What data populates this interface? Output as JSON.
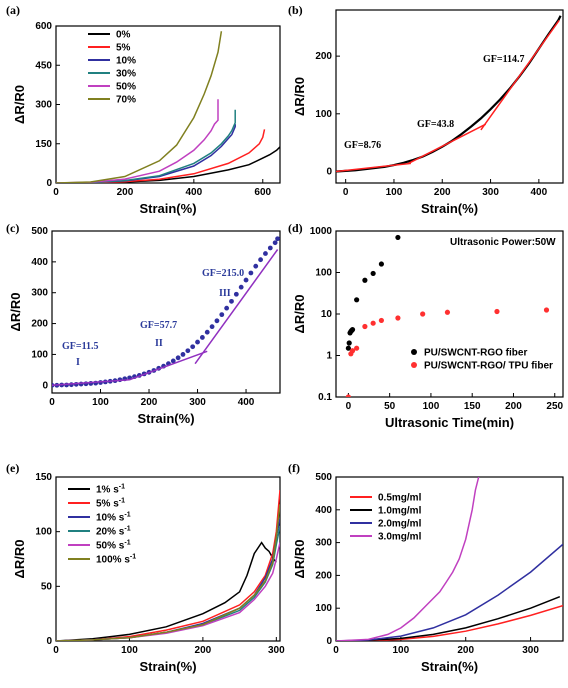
{
  "chart_data": [
    {
      "panel_label": "(a)",
      "type": "line",
      "xlabel": "Strain(%)",
      "ylabel": "ΔR/R0",
      "xlim": [
        0,
        650
      ],
      "ylim": [
        0,
        600
      ],
      "xticks": [
        "0",
        "200",
        "400",
        "600"
      ],
      "yticks": [
        "0",
        "150",
        "300",
        "450",
        "600"
      ],
      "legend_position": "top-left",
      "series": [
        {
          "name": "0%",
          "color": "#000000",
          "x": [
            0,
            100,
            200,
            300,
            400,
            500,
            560,
            600,
            620,
            640,
            650
          ],
          "y": [
            0,
            1,
            4,
            10,
            25,
            50,
            70,
            95,
            108,
            125,
            138
          ]
        },
        {
          "name": "5%",
          "color": "#ff2020",
          "x": [
            0,
            100,
            200,
            300,
            400,
            500,
            560,
            590,
            600,
            605
          ],
          "y": [
            0,
            1,
            5,
            14,
            35,
            75,
            115,
            150,
            175,
            205
          ]
        },
        {
          "name": "10%",
          "color": "#3030a0",
          "x": [
            0,
            100,
            200,
            300,
            400,
            450,
            480,
            500,
            510,
            515,
            520,
            520
          ],
          "y": [
            0,
            2,
            8,
            25,
            65,
            105,
            140,
            170,
            185,
            200,
            215,
            225
          ]
        },
        {
          "name": "30%",
          "color": "#208080",
          "x": [
            0,
            100,
            200,
            300,
            400,
            450,
            480,
            500,
            510,
            515,
            520,
            520
          ],
          "y": [
            0,
            2,
            9,
            28,
            75,
            115,
            150,
            180,
            200,
            215,
            230,
            280
          ]
        },
        {
          "name": "50%",
          "color": "#c040c0",
          "x": [
            0,
            100,
            200,
            300,
            350,
            400,
            430,
            450,
            460,
            470,
            470
          ],
          "y": [
            0,
            3,
            15,
            45,
            80,
            125,
            165,
            200,
            225,
            240,
            320
          ]
        },
        {
          "name": "70%",
          "color": "#808020",
          "x": [
            0,
            100,
            200,
            300,
            350,
            400,
            430,
            450,
            470,
            480
          ],
          "y": [
            0,
            4,
            25,
            85,
            145,
            250,
            340,
            410,
            500,
            580
          ]
        }
      ]
    },
    {
      "panel_label": "(b)",
      "type": "line",
      "xlabel": "Strain(%)",
      "ylabel": "ΔR/R0",
      "xlim": [
        0,
        470
      ],
      "ylim": [
        -20,
        280
      ],
      "xticks": [
        "0",
        "100",
        "200",
        "300",
        "400"
      ],
      "yticks": [
        "0",
        "100",
        "200"
      ],
      "annotations": [
        "GF=8.76",
        "GF=43.8",
        "GF=114.7"
      ],
      "series": [
        {
          "name": "",
          "color": "#000000",
          "x": [
            0,
            20,
            40,
            60,
            80,
            100,
            120,
            140,
            160,
            180,
            200,
            220,
            240,
            260,
            280,
            300,
            320,
            340,
            360,
            380,
            400,
            420,
            440,
            460,
            465
          ],
          "y": [
            0,
            1,
            2,
            4,
            6,
            8,
            11,
            15,
            20,
            26,
            34,
            43,
            53,
            65,
            78,
            92,
            108,
            125,
            144,
            165,
            188,
            213,
            238,
            262,
            270
          ]
        },
        {
          "name": "",
          "color": "#ff2020",
          "x": [
            0,
            155
          ],
          "y": [
            0,
            14
          ]
        },
        {
          "name": "",
          "color": "#ff2020",
          "x": [
            150,
            310
          ],
          "y": [
            14,
            82
          ]
        },
        {
          "name": "",
          "color": "#ff2020",
          "x": [
            300,
            462
          ],
          "y": [
            72,
            262
          ]
        }
      ]
    },
    {
      "panel_label": "(c)",
      "type": "scatter",
      "xlabel": "Strain(%)",
      "ylabel": "ΔR/R0",
      "xlim": [
        0,
        470
      ],
      "ylim": [
        -25,
        500
      ],
      "xticks": [
        "0",
        "100",
        "200",
        "300",
        "400"
      ],
      "yticks": [
        "0",
        "100",
        "200",
        "300",
        "400",
        "500"
      ],
      "annotations": [
        "GF=11.5",
        "I",
        "GF=57.7",
        "II",
        "GF=215.0",
        "III"
      ],
      "series": [
        {
          "name": "",
          "color": "#3030a0",
          "x": [
            0,
            10,
            20,
            30,
            40,
            50,
            60,
            70,
            80,
            90,
            100,
            110,
            120,
            130,
            140,
            150,
            160,
            170,
            180,
            190,
            200,
            210,
            220,
            230,
            240,
            250,
            260,
            270,
            280,
            290,
            300,
            310,
            320,
            330,
            340,
            350,
            360,
            370,
            380,
            390,
            400,
            410,
            420,
            430,
            440,
            450,
            460,
            465
          ],
          "y": [
            0,
            0,
            1,
            1,
            2,
            3,
            4,
            5,
            6,
            7,
            9,
            11,
            13,
            15,
            18,
            21,
            24,
            28,
            32,
            37,
            42,
            48,
            55,
            62,
            70,
            79,
            89,
            100,
            112,
            125,
            140,
            155,
            172,
            190,
            209,
            229,
            250,
            272,
            295,
            318,
            341,
            364,
            386,
            407,
            427,
            445,
            462,
            475
          ]
        },
        {
          "name": "",
          "color": "#9030c0",
          "x": [
            0,
            160
          ],
          "y": [
            0,
            18
          ],
          "mode": "line"
        },
        {
          "name": "",
          "color": "#9030c0",
          "x": [
            160,
            320
          ],
          "y": [
            18,
            110
          ],
          "mode": "line"
        },
        {
          "name": "",
          "color": "#9030c0",
          "x": [
            295,
            465
          ],
          "y": [
            70,
            440
          ],
          "mode": "line"
        }
      ]
    },
    {
      "panel_label": "(d)",
      "type": "scatter",
      "xlabel": "Ultrasonic Time(min)",
      "ylabel": "ΔR/R0",
      "log_y": true,
      "xlim": [
        -15,
        260
      ],
      "ylim": [
        0.1,
        1000
      ],
      "xticks": [
        "0",
        "50",
        "100",
        "150",
        "200",
        "250"
      ],
      "yticks": [
        "0.1",
        "1",
        "10",
        "100",
        "1000"
      ],
      "annotations": [
        "Ultrasonic Power:50W"
      ],
      "legend_position": "bottom-right",
      "series": [
        {
          "name": "PU/SWCNT-RGO fiber",
          "color": "#000000",
          "x": [
            0,
            1,
            2,
            3,
            4,
            5,
            10,
            20,
            30,
            40,
            60
          ],
          "y": [
            1.5,
            2.0,
            3.5,
            3.8,
            4.0,
            4.2,
            22,
            65,
            95,
            160,
            700
          ]
        },
        {
          "name": "PU/SWCNT-RGO/ TPU fiber",
          "color": "#ff3030",
          "x": [
            0,
            3,
            5,
            10,
            20,
            30,
            40,
            60,
            90,
            120,
            180,
            240
          ],
          "y": [
            0.1,
            1.1,
            1.3,
            1.5,
            5,
            6,
            7,
            8,
            10,
            11,
            11.5,
            12.5
          ]
        }
      ]
    },
    {
      "panel_label": "(e)",
      "type": "line",
      "xlabel": "Strain(%)",
      "ylabel": "ΔR/R0",
      "xlim": [
        0,
        305
      ],
      "ylim": [
        0,
        150
      ],
      "xticks": [
        "0",
        "100",
        "200",
        "300"
      ],
      "yticks": [
        "0",
        "50",
        "100",
        "150"
      ],
      "legend_position": "top-left",
      "series": [
        {
          "name": "1% s-1",
          "color": "#000000",
          "x": [
            0,
            50,
            100,
            150,
            200,
            230,
            250,
            260,
            270,
            280,
            285,
            290,
            295,
            300
          ],
          "y": [
            0,
            2,
            6,
            13,
            25,
            35,
            45,
            60,
            80,
            90,
            85,
            82,
            76,
            72
          ]
        },
        {
          "name": "5% s-1",
          "color": "#ff2020",
          "x": [
            0,
            50,
            100,
            150,
            200,
            250,
            270,
            285,
            295,
            300,
            305
          ],
          "y": [
            0,
            1,
            4,
            10,
            18,
            33,
            45,
            60,
            80,
            100,
            138
          ]
        },
        {
          "name": "10% s-1",
          "color": "#3030a0",
          "x": [
            0,
            50,
            100,
            150,
            200,
            250,
            270,
            285,
            295,
            300,
            305
          ],
          "y": [
            0,
            1,
            3,
            8,
            16,
            30,
            42,
            58,
            75,
            95,
            112
          ]
        },
        {
          "name": "20% s-1",
          "color": "#208080",
          "x": [
            0,
            50,
            100,
            150,
            200,
            250,
            270,
            285,
            295,
            300,
            305
          ],
          "y": [
            0,
            1,
            3,
            8,
            15,
            28,
            40,
            54,
            70,
            88,
            105
          ]
        },
        {
          "name": "50% s-1",
          "color": "#c040c0",
          "x": [
            0,
            50,
            100,
            150,
            200,
            250,
            270,
            285,
            295,
            300,
            305
          ],
          "y": [
            0,
            1,
            3,
            7,
            14,
            26,
            38,
            50,
            62,
            75,
            90
          ]
        },
        {
          "name": "100% s-1",
          "color": "#808020",
          "x": [
            0,
            50,
            100,
            150,
            200,
            250,
            270,
            285,
            295,
            300,
            305
          ],
          "y": [
            0,
            1,
            3,
            8,
            15,
            30,
            42,
            55,
            72,
            95,
            125
          ]
        }
      ]
    },
    {
      "panel_label": "(f)",
      "type": "line",
      "xlabel": "Strain(%)",
      "ylabel": "ΔR/R0",
      "xlim": [
        0,
        350
      ],
      "ylim": [
        0,
        500
      ],
      "xticks": [
        "0",
        "100",
        "200",
        "300"
      ],
      "yticks": [
        "0",
        "100",
        "200",
        "300",
        "400",
        "500"
      ],
      "legend_position": "top-left",
      "series": [
        {
          "name": "0.5mg/ml",
          "color": "#ff2020",
          "x": [
            0,
            50,
            100,
            150,
            200,
            250,
            300,
            350
          ],
          "y": [
            0,
            1,
            5,
            14,
            30,
            52,
            78,
            108
          ]
        },
        {
          "name": "1.0mg/ml",
          "color": "#000000",
          "x": [
            0,
            50,
            100,
            150,
            200,
            250,
            300,
            345
          ],
          "y": [
            0,
            2,
            8,
            20,
            40,
            68,
            100,
            135
          ]
        },
        {
          "name": "2.0mg/ml",
          "color": "#3030a0",
          "x": [
            0,
            50,
            100,
            150,
            200,
            250,
            300,
            350
          ],
          "y": [
            0,
            3,
            15,
            40,
            80,
            140,
            210,
            295
          ]
        },
        {
          "name": "3.0mg/ml",
          "color": "#c040c0",
          "x": [
            0,
            50,
            80,
            100,
            120,
            140,
            160,
            170,
            180,
            190,
            200,
            210,
            215,
            220
          ],
          "y": [
            0,
            5,
            20,
            40,
            70,
            110,
            150,
            180,
            210,
            250,
            310,
            400,
            460,
            500
          ]
        }
      ]
    }
  ]
}
